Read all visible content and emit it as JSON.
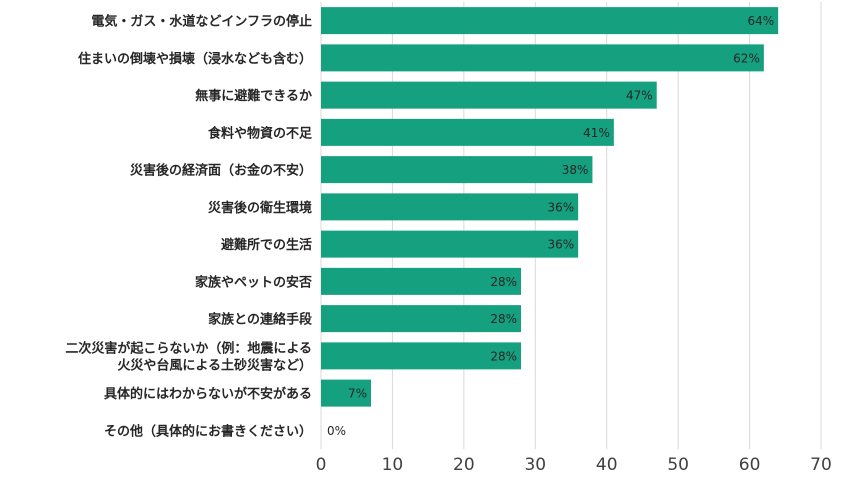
{
  "chart_data": {
    "type": "bar",
    "orientation": "horizontal",
    "categories": [
      "電気・ガス・水道などインフラの停止",
      "住まいの倒壊や損壊（浸水なども含む）",
      "無事に避難できるか",
      "食料や物資の不足",
      "災害後の経済面（お金の不安）",
      "災害後の衛生環境",
      "避難所での生活",
      "家族やペットの安否",
      "家族との連絡手段",
      "二次災害が起こらないか（例：地震による\n火災や台風による土砂災害など）",
      "具体的にはわからないが不安がある",
      "その他（具体的にお書きください）"
    ],
    "values": [
      64,
      62,
      47,
      41,
      38,
      36,
      36,
      28,
      28,
      28,
      7,
      0
    ],
    "data_labels": [
      "64%",
      "62%",
      "47%",
      "41%",
      "38%",
      "36%",
      "36%",
      "28%",
      "28%",
      "28%",
      "7%",
      "0%"
    ],
    "xlim": [
      0,
      70
    ],
    "xticks": [
      "0",
      "10",
      "20",
      "30",
      "40",
      "50",
      "60",
      "70"
    ],
    "grid": true,
    "bar_color": "#15a080",
    "grid_color": "#d9d9d9"
  }
}
